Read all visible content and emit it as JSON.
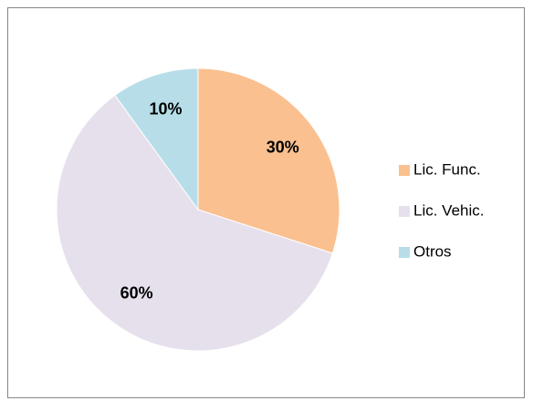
{
  "chart_data": {
    "type": "pie",
    "categories": [
      "Lic. Func.",
      "Lic. Vehic.",
      "Otros"
    ],
    "values": [
      30,
      60,
      10
    ],
    "value_labels": [
      "30%",
      "60%",
      "10%"
    ],
    "colors": [
      "#fac090",
      "#e6e0ec",
      "#b7dee8"
    ],
    "legend": "right"
  }
}
